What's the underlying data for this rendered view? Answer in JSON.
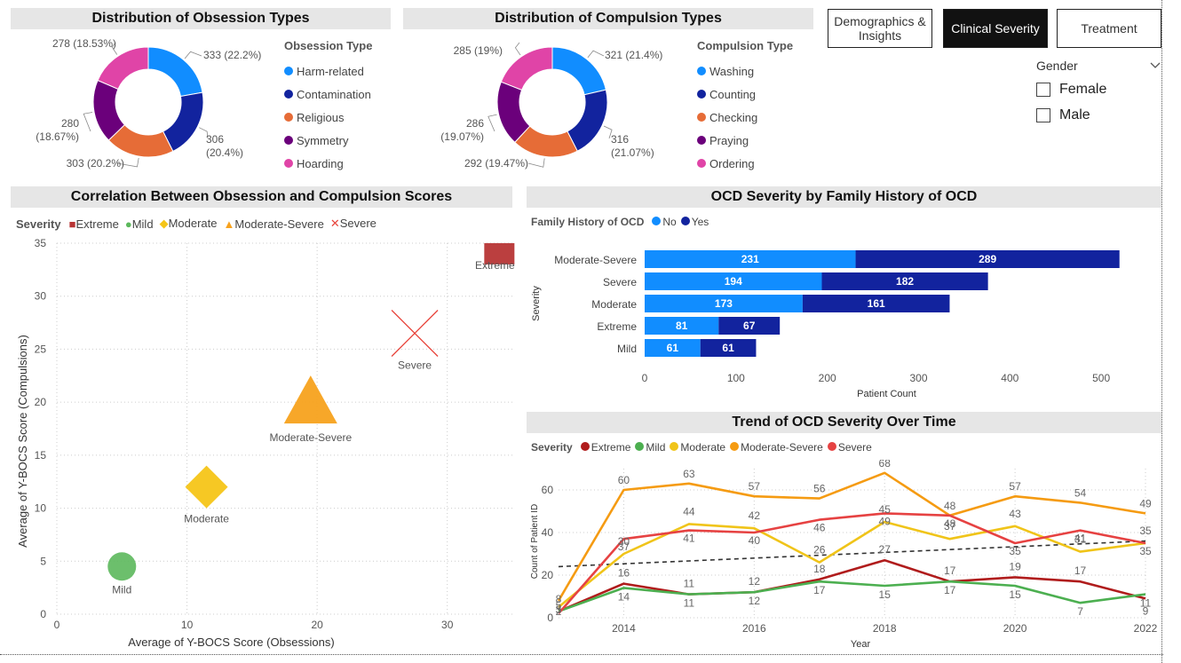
{
  "tabs": [
    {
      "label": "Demographics & Insights",
      "active": false
    },
    {
      "label": "Clinical Severity",
      "active": true
    },
    {
      "label": "Treatment",
      "active": false
    }
  ],
  "slicer": {
    "title": "Gender",
    "options": [
      "Female",
      "Male"
    ]
  },
  "obsession_donut": {
    "title": "Distribution of Obsession Types",
    "legend_title": "Obsession Type",
    "labels": [
      "333 (22.2%)",
      "306 (20.4%)",
      "303 (20.2%)",
      "280 (18.67%)",
      "278 (18.53%)"
    ],
    "label_lines": [
      [
        "333 (22.2%)"
      ],
      [
        "306",
        "(20.4%)"
      ],
      [
        "303 (20.2%)"
      ],
      [
        "280",
        "(18.67%)"
      ],
      [
        "278 (18.53%)"
      ]
    ]
  },
  "compulsion_donut": {
    "title": "Distribution of Compulsion Types",
    "legend_title": "Compulsion Type",
    "label_lines": [
      [
        "321 (21.4%)"
      ],
      [
        "316",
        "(21.07%)"
      ],
      [
        "292 (19.47%)"
      ],
      [
        "286",
        "(19.07%)"
      ],
      [
        "285 (19%)"
      ]
    ]
  },
  "scatter_panel": {
    "title": "Correlation Between Obsession and Compulsion Scores",
    "legend_title": "Severity"
  },
  "bar_panel": {
    "title": "OCD Severity by Family History of OCD",
    "legend_title": "Family History of OCD"
  },
  "line_panel": {
    "title": "Trend of OCD Severity Over Time",
    "legend_title": "Severity"
  },
  "colors": {
    "harm": "#118dff",
    "contamination": "#12239e",
    "religious": "#e66c37",
    "symmetry": "#6b007b",
    "hoarding": "#e044a7",
    "extreme": "#b73535",
    "mild": "#5cb85c",
    "moderate": "#f5c518",
    "moderate_severe": "#f7a21e",
    "severe": "#e8453c",
    "no": "#118dff",
    "yes": "#12239e",
    "line_extreme": "#b01c1c",
    "line_mild": "#4caf50",
    "line_moderate": "#f0c419",
    "line_modsev": "#f59b12",
    "line_severe": "#e64242"
  },
  "chart_data": [
    {
      "type": "pie",
      "title": "Distribution of Obsession Types",
      "legend_title": "Obsession Type",
      "categories": [
        "Harm-related",
        "Contamination",
        "Religious",
        "Symmetry",
        "Hoarding"
      ],
      "values": [
        333,
        306,
        303,
        280,
        278
      ],
      "percents": [
        "22.2%",
        "20.4%",
        "20.2%",
        "18.67%",
        "18.53%"
      ]
    },
    {
      "type": "pie",
      "title": "Distribution of Compulsion Types",
      "legend_title": "Compulsion Type",
      "categories": [
        "Washing",
        "Counting",
        "Checking",
        "Praying",
        "Ordering"
      ],
      "values": [
        321,
        316,
        292,
        286,
        285
      ],
      "percents": [
        "21.4%",
        "21.07%",
        "19.47%",
        "19.07%",
        "19%"
      ]
    },
    {
      "type": "scatter",
      "title": "Correlation Between Obsession and Compulsion Scores",
      "legend_title": "Severity",
      "xlabel": "Average of Y-BOCS Score (Obsessions)",
      "ylabel": "Average of Y-BOCS Score (Compulsions)",
      "xlim": [
        0,
        35
      ],
      "ylim": [
        0,
        35
      ],
      "xticks": [
        "0",
        "10",
        "20",
        "30"
      ],
      "yticks": [
        "0",
        "5",
        "10",
        "15",
        "20",
        "25",
        "30",
        "35"
      ],
      "series": [
        {
          "name": "Extreme",
          "x": 34,
          "y": 34,
          "marker": "square"
        },
        {
          "name": "Mild",
          "x": 5,
          "y": 4.5,
          "marker": "circle"
        },
        {
          "name": "Moderate",
          "x": 11.5,
          "y": 12,
          "marker": "diamond"
        },
        {
          "name": "Moderate-Severe",
          "x": 19.5,
          "y": 19.5,
          "marker": "triangle"
        },
        {
          "name": "Severe",
          "x": 27.5,
          "y": 26.5,
          "marker": "x"
        }
      ],
      "grid": true
    },
    {
      "type": "bar",
      "orientation": "horizontal",
      "stacked": true,
      "title": "OCD Severity by Family History of OCD",
      "legend_title": "Family History of OCD",
      "categories": [
        "Moderate-Severe",
        "Severe",
        "Moderate",
        "Extreme",
        "Mild"
      ],
      "series": [
        {
          "name": "No",
          "values": [
            231,
            194,
            173,
            81,
            61
          ]
        },
        {
          "name": "Yes",
          "values": [
            289,
            182,
            161,
            67,
            61
          ]
        }
      ],
      "xlabel": "Patient Count",
      "ylabel": "Severity",
      "xlim": [
        0,
        530
      ],
      "xticks": [
        "0",
        "100",
        "200",
        "300",
        "400",
        "500"
      ]
    },
    {
      "type": "line",
      "title": "Trend of OCD Severity Over Time",
      "legend_title": "Severity",
      "x": [
        2013,
        2014,
        2015,
        2016,
        2017,
        2018,
        2019,
        2020,
        2021,
        2022
      ],
      "xticks": [
        "2014",
        "2016",
        "2018",
        "2020",
        "2022"
      ],
      "yticks": [
        "0",
        "20",
        "40",
        "60"
      ],
      "xlabel": "Year",
      "ylabel": "Count of Patient ID",
      "ylim": [
        0,
        70
      ],
      "series": [
        {
          "name": "Extreme",
          "values": [
            3,
            16,
            11,
            12,
            18,
            27,
            17,
            19,
            17,
            9
          ]
        },
        {
          "name": "Mild",
          "values": [
            3,
            14,
            11,
            12,
            17,
            15,
            17,
            15,
            7,
            11
          ]
        },
        {
          "name": "Moderate",
          "values": [
            5,
            30,
            44,
            42,
            26,
            45,
            37,
            43,
            31,
            35
          ]
        },
        {
          "name": "Moderate-Severe",
          "values": [
            8,
            60,
            63,
            57,
            56,
            68,
            48,
            57,
            54,
            49
          ]
        },
        {
          "name": "Severe",
          "values": [
            2,
            37,
            41,
            40,
            46,
            49,
            48,
            35,
            41,
            35
          ]
        }
      ],
      "trendline": {
        "start": 24,
        "end": 36,
        "style": "dashed"
      },
      "data_labels": true,
      "grid": true
    }
  ]
}
